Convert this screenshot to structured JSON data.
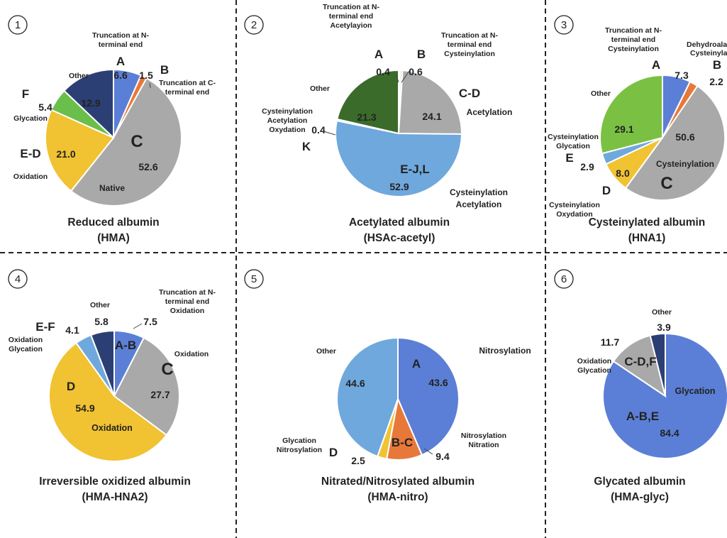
{
  "panel_numbers": [
    "1",
    "2",
    "3",
    "4",
    "5",
    "6"
  ],
  "chart_data": [
    {
      "type": "pie",
      "title": "Reduced albumin",
      "subtitle": "(HMA)",
      "slices": [
        {
          "key": "A",
          "value": 6.6,
          "color": "#5b7fd6"
        },
        {
          "key": "B",
          "value": 1.5,
          "color": "#e8783a"
        },
        {
          "key": "C",
          "value": 52.6,
          "color": "#a9a9a9"
        },
        {
          "key": "E-D",
          "value": 21.0,
          "color": "#f1c232"
        },
        {
          "key": "F",
          "value": 5.4,
          "color": "#6abf4b"
        },
        {
          "key": "Other",
          "value": 12.9,
          "color": "#2b3f74"
        }
      ],
      "labels": {
        "a_desc": "Truncation at N- terminal end",
        "a_letter": "A",
        "a_value": "6.6",
        "b_value": "1.5",
        "b_letter": "B",
        "b_desc": "Truncation at C- terminal end",
        "c_letter": "C",
        "c_value": "52.6",
        "c_desc": "Native",
        "ed_letter": "E-D",
        "ed_value": "21.0",
        "ed_desc": "Oxidation",
        "f_letter": "F",
        "f_value": "5.4",
        "f_desc": "Glycation",
        "other_value": "12.9",
        "other_desc": "Other"
      }
    },
    {
      "type": "pie",
      "title": "Acetylated albumin",
      "subtitle": "(HSAc-acetyl)",
      "slices": [
        {
          "key": "A",
          "value": 0.4,
          "color": "#e8783a"
        },
        {
          "key": "B",
          "value": 0.6,
          "color": "#f4d7c5"
        },
        {
          "key": "C-D",
          "value": 24.1,
          "color": "#a9a9a9"
        },
        {
          "key": "E-J,L",
          "value": 52.9,
          "color": "#6fa8dc"
        },
        {
          "key": "K",
          "value": 0.4,
          "color": "#ffffff"
        },
        {
          "key": "Other",
          "value": 21.3,
          "color": "#3a6b2a"
        }
      ],
      "labels": {
        "a_desc": "Truncation at N- terminal end Acetylayion",
        "a_letter": "A",
        "a_value": "0.4",
        "b_letter": "B",
        "b_value": "0.6",
        "b_desc": "Truncation at N- terminal end Cysteinylation",
        "cd_letter": "C-D",
        "cd_value": "24.1",
        "cd_desc": "Acetylation",
        "ej_letter": "E-J,L",
        "ej_value": "52.9",
        "ej_desc": "Cysteinylation Acetylation",
        "k_letter": "K",
        "k_value": "0.4",
        "k_desc": "Cysteinylation Acetylation Oxydation",
        "other_value": "21.3",
        "other_desc": "Other"
      }
    },
    {
      "type": "pie",
      "title": "Cysteinylated albumin",
      "subtitle": "(HNA1)",
      "slices": [
        {
          "key": "A",
          "value": 7.3,
          "color": "#5b7fd6"
        },
        {
          "key": "B",
          "value": 2.2,
          "color": "#e8783a"
        },
        {
          "key": "C",
          "value": 50.6,
          "color": "#a9a9a9"
        },
        {
          "key": "D",
          "value": 8.0,
          "color": "#f1c232"
        },
        {
          "key": "E",
          "value": 2.9,
          "color": "#6fa8dc"
        },
        {
          "key": "Other",
          "value": 29.1,
          "color": "#7ac143"
        }
      ],
      "labels": {
        "a_desc": "Truncation at N- terminal end Cysteinylation",
        "a_letter": "A",
        "a_value": "7.3",
        "b_desc": "Dehydroala Cysteinyla",
        "b_letter": "B",
        "b_value": "2.2",
        "c_letter": "C",
        "c_value": "50.6",
        "c_desc": "Cysteinylation",
        "d_letter": "D",
        "d_value": "8.0",
        "d_desc": "Cysteinylation Oxydation",
        "e_letter": "E",
        "e_value": "2.9",
        "e_desc": "Cysteinylation Glycation",
        "other_value": "29.1",
        "other_desc": "Other"
      }
    },
    {
      "type": "pie",
      "title": "Irreversible oxidized albumin",
      "subtitle": "(HMA-HNA2)",
      "slices": [
        {
          "key": "A-B",
          "value": 7.5,
          "color": "#5b7fd6"
        },
        {
          "key": "C",
          "value": 27.7,
          "color": "#a9a9a9"
        },
        {
          "key": "D",
          "value": 54.9,
          "color": "#f1c232"
        },
        {
          "key": "E-F",
          "value": 4.1,
          "color": "#6fa8dc"
        },
        {
          "key": "Other",
          "value": 5.8,
          "color": "#2b3f74"
        }
      ],
      "labels": {
        "ab_desc": "Truncation at N- terminal end Oxidation",
        "ab_letter": "A-B",
        "ab_value": "7.5",
        "c_letter": "C",
        "c_value": "27.7",
        "c_desc": "Oxidation",
        "d_letter": "D",
        "d_value": "54.9",
        "d_desc": "Oxidation",
        "ef_letter": "E-F",
        "ef_value": "4.1",
        "ef_desc": "Oxidation Glycation",
        "other_value": "5.8",
        "other_desc": "Other"
      }
    },
    {
      "type": "pie",
      "title": "Nitrated/Nitrosylated albumin",
      "subtitle": "(HMA-nitro)",
      "slices": [
        {
          "key": "A",
          "value": 43.6,
          "color": "#5b7fd6"
        },
        {
          "key": "B-C",
          "value": 9.4,
          "color": "#e8783a"
        },
        {
          "key": "D",
          "value": 2.5,
          "color": "#f1c232"
        },
        {
          "key": "Other",
          "value": 44.6,
          "color": "#6fa8dc"
        }
      ],
      "labels": {
        "a_letter": "A",
        "a_value": "43.6",
        "a_desc": "Nitrosylation",
        "bc_letter": "B-C",
        "bc_value": "9.4",
        "bc_desc": "Nitrosylation Nitration",
        "d_letter": "D",
        "d_value": "2.5",
        "d_desc": "Glycation Nitrosylation",
        "other_value": "44.6",
        "other_desc": "Other"
      }
    },
    {
      "type": "pie",
      "title": "Glycated albumin",
      "subtitle": "(HMA-glyc)",
      "slices": [
        {
          "key": "A-B,E",
          "value": 84.4,
          "color": "#5b7fd6"
        },
        {
          "key": "C-D,F",
          "value": 11.7,
          "color": "#a9a9a9"
        },
        {
          "key": "Other",
          "value": 3.9,
          "color": "#2b3f74"
        }
      ],
      "labels": {
        "abe_letter": "A-B,E",
        "abe_value": "84.4",
        "abe_desc": "Glycation",
        "cdf_letter": "C-D,F",
        "cdf_value": "11.7",
        "cdf_desc": "Oxidation Glycation",
        "other_value": "3.9",
        "other_desc": "Other"
      }
    }
  ]
}
